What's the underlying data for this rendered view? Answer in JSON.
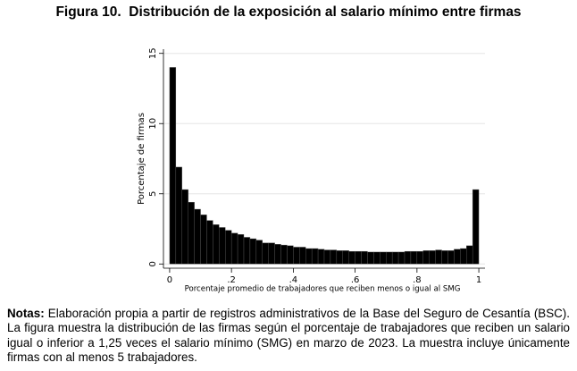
{
  "chart_data": {
    "type": "histogram",
    "title": "Figura 10.  Distribución de la exposición al salario mínimo entre firmas",
    "x_label": "Porcentaje promedio de trabajadores que reciben menos o igual al SMG",
    "y_label": "Porcentaje de firmas",
    "bins": [
      0,
      0.02,
      0.04,
      0.06,
      0.08,
      0.1,
      0.12,
      0.14,
      0.16,
      0.18,
      0.2,
      0.22,
      0.24,
      0.26,
      0.28,
      0.3,
      0.32,
      0.34,
      0.36,
      0.38,
      0.4,
      0.42,
      0.44,
      0.46,
      0.48,
      0.5,
      0.52,
      0.54,
      0.56,
      0.58,
      0.6,
      0.62,
      0.64,
      0.66,
      0.68,
      0.7,
      0.72,
      0.74,
      0.76,
      0.78,
      0.8,
      0.82,
      0.84,
      0.86,
      0.88,
      0.9,
      0.92,
      0.94,
      0.96,
      0.98,
      1
    ],
    "values": [
      14.0,
      6.9,
      5.3,
      4.4,
      3.9,
      3.5,
      3.1,
      2.8,
      2.6,
      2.4,
      2.2,
      2.1,
      1.9,
      1.8,
      1.7,
      1.5,
      1.5,
      1.4,
      1.35,
      1.3,
      1.2,
      1.2,
      1.1,
      1.1,
      1.05,
      1.0,
      1.0,
      0.95,
      0.95,
      0.9,
      0.9,
      0.9,
      0.85,
      0.85,
      0.85,
      0.85,
      0.85,
      0.85,
      0.9,
      0.9,
      0.9,
      0.95,
      0.95,
      1.0,
      0.95,
      0.95,
      1.05,
      1.1,
      1.3,
      5.3
    ],
    "color": "#000000",
    "xlim": [
      -0.02,
      1.02
    ],
    "xticks": [
      0,
      {
        "value": 0.2,
        "label": ".2"
      },
      {
        "value": 0.4,
        "label": ".4"
      },
      {
        "value": 0.6,
        "label": ".6"
      },
      {
        "value": 0.8,
        "label": ".8"
      },
      1
    ],
    "ylim": [
      -0.3,
      15.3
    ],
    "yticks": [
      0,
      5,
      10,
      15
    ],
    "grid": true
  },
  "notes": {
    "label": "Notas:",
    "text": "Elaboración propia a partir de registros administrativos de la Base del Seguro de Cesantía (BSC). La figura muestra la distribución de las firmas según el porcentaje de trabajadores que reciben un salario igual o inferior a 1,25 veces el salario mínimo (SMG) en marzo de 2023. La muestra incluye únicamente firmas con al menos 5 trabajadores."
  }
}
